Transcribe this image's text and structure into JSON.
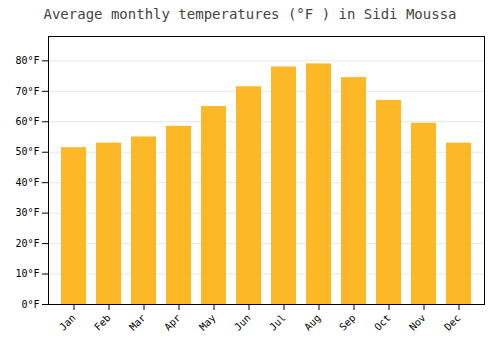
{
  "chart_data": {
    "type": "bar",
    "title": "Average monthly temperatures (°F ) in Sidi Moussa",
    "categories": [
      "Jan",
      "Feb",
      "Mar",
      "Apr",
      "May",
      "Jun",
      "Jul",
      "Aug",
      "Sep",
      "Oct",
      "Nov",
      "Dec"
    ],
    "values": [
      51.5,
      53.0,
      55.0,
      58.5,
      65.0,
      71.5,
      78.0,
      79.0,
      74.5,
      67.0,
      59.5,
      53.0
    ],
    "color": "#FDB827",
    "ylim": [
      0,
      88
    ],
    "yticks": [
      {
        "value": 0,
        "label": "0°F"
      },
      {
        "value": 10,
        "label": "10°F"
      },
      {
        "value": 20,
        "label": "20°F"
      },
      {
        "value": 30,
        "label": "30°F"
      },
      {
        "value": 40,
        "label": "40°F"
      },
      {
        "value": 50,
        "label": "50°F"
      },
      {
        "value": 60,
        "label": "60°F"
      },
      {
        "value": 70,
        "label": "70°F"
      },
      {
        "value": 80,
        "label": "80°F"
      }
    ],
    "grid": true
  }
}
